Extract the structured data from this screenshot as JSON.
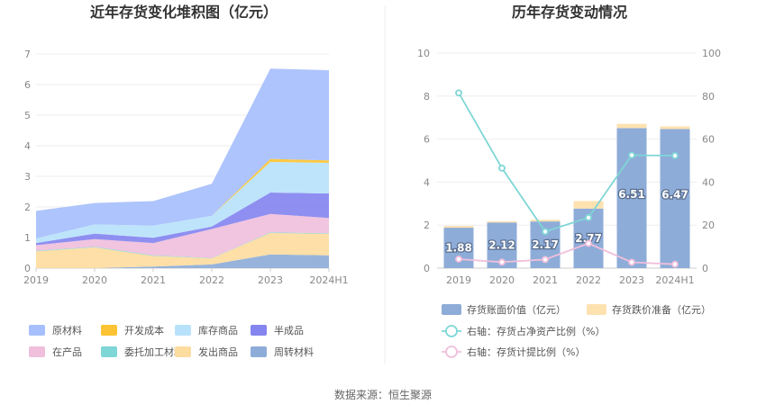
{
  "source": "数据来源：恒生聚源",
  "chart_data": [
    {
      "type": "area",
      "stacked": true,
      "title": "近年存货变化堆积图（亿元）",
      "categories": [
        "2019",
        "2020",
        "2021",
        "2022",
        "2023",
        "2024H1"
      ],
      "ylim": [
        0,
        7
      ],
      "yticks": [
        "0",
        "1",
        "2",
        "3",
        "4",
        "5",
        "6",
        "7"
      ],
      "grid": true,
      "legend": "bottom",
      "series": [
        {
          "name": "周转材料",
          "color": "#8eacd8",
          "values": [
            0.0,
            0.0,
            0.05,
            0.12,
            0.45,
            0.42
          ]
        },
        {
          "name": "发出商品",
          "color": "#fddca0",
          "values": [
            0.55,
            0.68,
            0.35,
            0.2,
            0.7,
            0.7
          ]
        },
        {
          "name": "委托加工材料",
          "color": "#7fd6d6",
          "values": [
            0.02,
            0.02,
            0.02,
            0.01,
            0.02,
            0.02
          ]
        },
        {
          "name": "在产品",
          "color": "#f0bfdc",
          "values": [
            0.18,
            0.25,
            0.4,
            0.95,
            0.6,
            0.5
          ]
        },
        {
          "name": "半成品",
          "color": "#8585f0",
          "values": [
            0.07,
            0.18,
            0.17,
            0.08,
            0.7,
            0.8
          ]
        },
        {
          "name": "库存商品",
          "color": "#b8e2fb",
          "values": [
            0.15,
            0.3,
            0.4,
            0.35,
            1.0,
            1.0
          ]
        },
        {
          "name": "开发成本",
          "color": "#fcc434",
          "values": [
            0.0,
            0.0,
            0.0,
            0.0,
            0.1,
            0.08
          ]
        },
        {
          "name": "原材料",
          "color": "#a7bffc",
          "values": [
            0.9,
            0.7,
            0.8,
            1.05,
            2.95,
            2.95
          ]
        }
      ],
      "legend_order": [
        "原材料",
        "开发成本",
        "库存商品",
        "半成品",
        "在产品",
        "委托加工材料",
        "发出商品",
        "周转材料"
      ]
    },
    {
      "type": "bar+line",
      "title": "历年存货变动情况",
      "categories": [
        "2019",
        "2020",
        "2021",
        "2022",
        "2023",
        "2024H1"
      ],
      "ylim_left": [
        0,
        10
      ],
      "yticks_left": [
        "0",
        "2",
        "4",
        "6",
        "8",
        "10"
      ],
      "ylim_right": [
        0,
        100
      ],
      "yticks_right": [
        "0",
        "20",
        "40",
        "60",
        "80",
        "100"
      ],
      "grid": true,
      "legend": "bottom",
      "bars": [
        {
          "name": "存货账面价值（亿元）",
          "color": "#8eacd8",
          "values": [
            1.88,
            2.12,
            2.17,
            2.77,
            6.51,
            6.47
          ],
          "labels": [
            "1.88",
            "2.12",
            "2.17",
            "2.77",
            "6.51",
            "6.47"
          ]
        },
        {
          "name": "存货跌价准备（亿元）",
          "color": "#fde2b0",
          "values": [
            0.08,
            0.06,
            0.08,
            0.35,
            0.2,
            0.12
          ]
        }
      ],
      "lines": [
        {
          "name": "右轴：存货占净资产比例（%）",
          "color": "#7fd6d6",
          "values": [
            81.5,
            46.5,
            17.0,
            23.5,
            52.5,
            52.3
          ]
        },
        {
          "name": "右轴：存货计提比例（%）",
          "color": "#f0bfdc",
          "values": [
            4.2,
            2.8,
            4.0,
            11.5,
            2.7,
            1.8
          ]
        }
      ]
    }
  ]
}
